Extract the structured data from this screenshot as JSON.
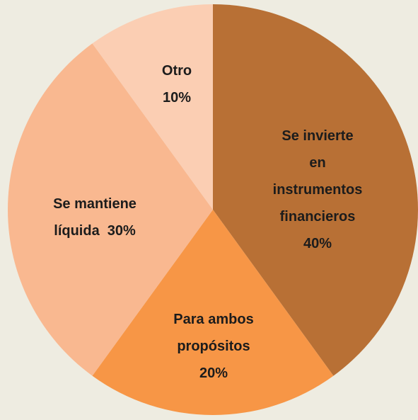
{
  "chart_data": {
    "type": "pie",
    "categories": [
      "Se invierte\nen\ninstrumentos\nfinancieros",
      "Para ambos\npropósitos",
      "Se mantiene\nlíquida",
      "Otro"
    ],
    "values": [
      40,
      20,
      30,
      10
    ],
    "value_labels": [
      "40%",
      "20%",
      "30%",
      "10%"
    ],
    "colors": [
      "#b87035",
      "#f79646",
      "#f9b890",
      "#fbceb3"
    ]
  }
}
